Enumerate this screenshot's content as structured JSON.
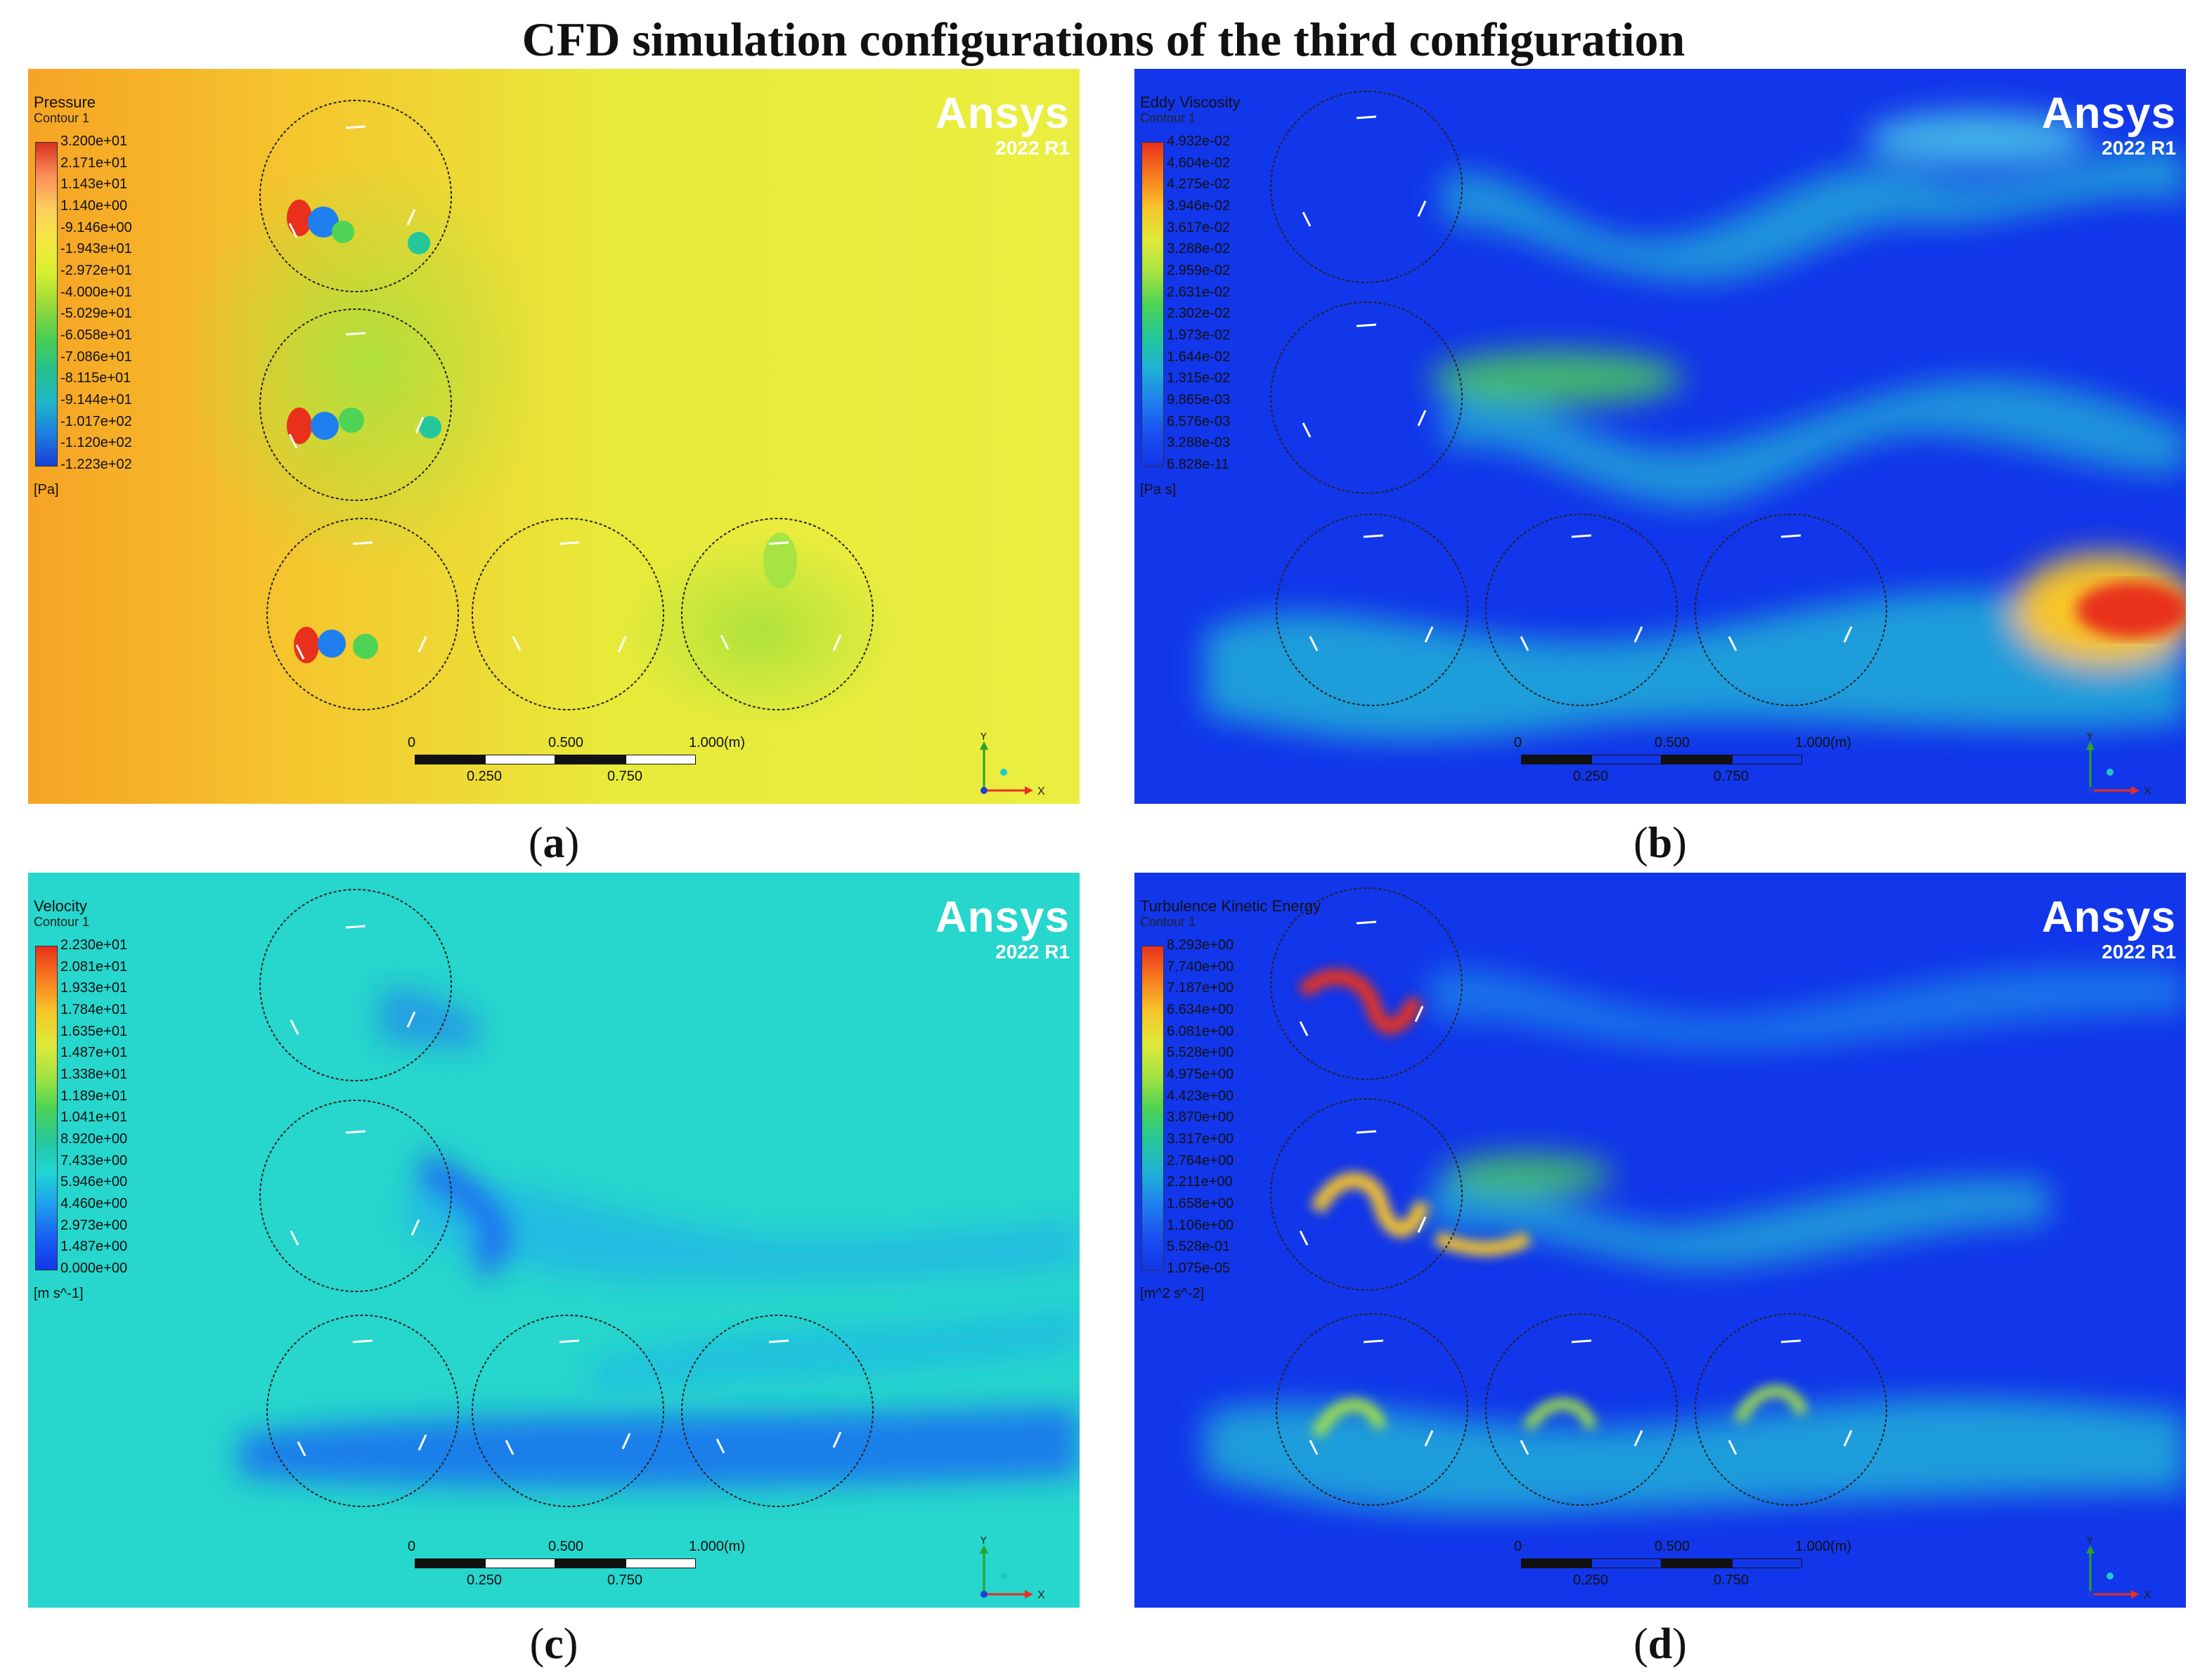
{
  "figure": {
    "title": "CFD simulation configurations of the third configuration"
  },
  "panels": [
    {
      "id": "a",
      "caption_open": "(",
      "caption_letter": "a",
      "caption_close": ")",
      "legend_title": "Pressure",
      "legend_subtitle": "Contour 1",
      "legend_ticks": [
        "3.200e+01",
        "2.171e+01",
        "1.143e+01",
        "1.140e+00",
        "-9.146e+00",
        "-1.943e+01",
        "-2.972e+01",
        "-4.000e+01",
        "-5.029e+01",
        "-6.058e+01",
        "-7.086e+01",
        "-8.115e+01",
        "-9.144e+01",
        "-1.017e+02",
        "-1.120e+02",
        "-1.223e+02"
      ],
      "legend_unit": "[Pa]",
      "colormap": [
        "#d7301f",
        "#fc8d59",
        "#fdcc5c",
        "#f4e842",
        "#d9f02e",
        "#9ad93a",
        "#4fcf4f",
        "#27c08a",
        "#1fb8c8",
        "#1e7fe0",
        "#1a3fd6"
      ],
      "background": "#ecec3a"
    },
    {
      "id": "b",
      "caption_open": "(",
      "caption_letter": "b",
      "caption_close": ")",
      "legend_title": "Eddy Viscosity",
      "legend_subtitle": "Contour 1",
      "legend_ticks": [
        "4.932e-02",
        "4.604e-02",
        "4.275e-02",
        "3.946e-02",
        "3.617e-02",
        "3.288e-02",
        "2.959e-02",
        "2.631e-02",
        "2.302e-02",
        "1.973e-02",
        "1.644e-02",
        "1.315e-02",
        "9.865e-03",
        "6.576e-03",
        "3.288e-03",
        "6.828e-11"
      ],
      "legend_unit": "[Pa s]",
      "colormap": [
        "#e8301c",
        "#f77b1f",
        "#f7c42a",
        "#dfe93a",
        "#a6e443",
        "#4ed354",
        "#24c79a",
        "#1fb2d6",
        "#1f7fee",
        "#1a4ff2",
        "#1236ea"
      ],
      "background": "#1236ea"
    },
    {
      "id": "c",
      "caption_open": "(",
      "caption_letter": "c",
      "caption_close": ")",
      "legend_title": "Velocity",
      "legend_subtitle": "Contour 1",
      "legend_ticks": [
        "2.230e+01",
        "2.081e+01",
        "1.933e+01",
        "1.784e+01",
        "1.635e+01",
        "1.487e+01",
        "1.338e+01",
        "1.189e+01",
        "1.041e+01",
        "8.920e+00",
        "7.433e+00",
        "5.946e+00",
        "4.460e+00",
        "2.973e+00",
        "1.487e+00",
        "0.000e+00"
      ],
      "legend_unit": "[m s^-1]",
      "colormap": [
        "#e8301c",
        "#f77b1f",
        "#f7c42a",
        "#dfe93a",
        "#a6e443",
        "#4ed354",
        "#24c79a",
        "#1fd6d6",
        "#1f9fee",
        "#1a5ff2",
        "#1236ea"
      ],
      "background": "#27d6d0"
    },
    {
      "id": "d",
      "caption_open": "(",
      "caption_letter": "d",
      "caption_close": ")",
      "legend_title": "Turbulence Kinetic Energy",
      "legend_subtitle": "Contour 1",
      "legend_ticks": [
        "8.293e+00",
        "7.740e+00",
        "7.187e+00",
        "6.634e+00",
        "6.081e+00",
        "5.528e+00",
        "4.975e+00",
        "4.423e+00",
        "3.870e+00",
        "3.317e+00",
        "2.764e+00",
        "2.211e+00",
        "1.658e+00",
        "1.106e+00",
        "5.528e-01",
        "1.075e-05"
      ],
      "legend_unit": "[m^2 s^-2]",
      "colormap": [
        "#e8301c",
        "#f77b1f",
        "#f7c42a",
        "#dfe93a",
        "#a6e443",
        "#4ed354",
        "#24c79a",
        "#1fb2d6",
        "#1f7fee",
        "#1a4ff2",
        "#1236ea"
      ],
      "background": "#1236ea"
    }
  ],
  "branding": {
    "name": "Ansys",
    "version": "2022 R1"
  },
  "scale_bar": {
    "top_labels": [
      "0",
      "0.500",
      "1.000"
    ],
    "bottom_labels": [
      "0.250",
      "0.750"
    ],
    "unit": "(m)"
  },
  "axes_triad": {
    "x": "X",
    "y": "Y"
  }
}
